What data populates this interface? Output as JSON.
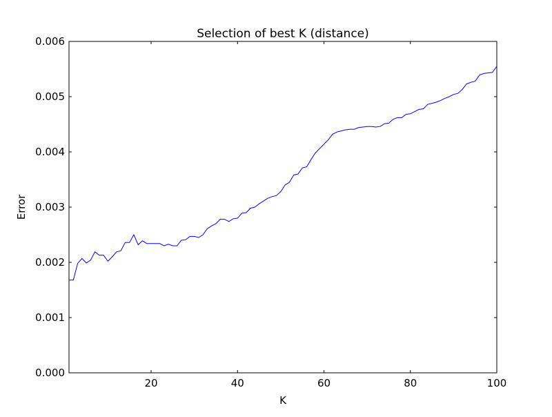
{
  "chart_data": {
    "type": "line",
    "title": "Selection of best K (distance)",
    "xlabel": "K",
    "ylabel": "Error",
    "xlim": [
      1,
      100
    ],
    "ylim": [
      0,
      0.006
    ],
    "x_ticks": [
      20,
      40,
      60,
      80,
      100
    ],
    "y_ticks": [
      0.0,
      0.001,
      0.002,
      0.003,
      0.004,
      0.005,
      0.006
    ],
    "x_tick_labels": [
      "20",
      "40",
      "60",
      "80",
      "100"
    ],
    "y_tick_labels": [
      "0.000",
      "0.001",
      "0.002",
      "0.003",
      "0.004",
      "0.005",
      "0.006"
    ],
    "grid": false,
    "colors": {
      "line": "#0000ff",
      "axes": "#000000",
      "background": "#ffffff"
    },
    "series": [
      {
        "x_start": 1,
        "x_step": 1,
        "values": [
          0.00168,
          0.00168,
          0.00198,
          0.00207,
          0.00199,
          0.00204,
          0.00219,
          0.00213,
          0.00213,
          0.00202,
          0.0021,
          0.00219,
          0.00221,
          0.00236,
          0.00236,
          0.0025,
          0.00232,
          0.00239,
          0.00234,
          0.00234,
          0.00234,
          0.00234,
          0.0023,
          0.00233,
          0.0023,
          0.0023,
          0.0024,
          0.00241,
          0.00247,
          0.00247,
          0.00245,
          0.0025,
          0.00261,
          0.00266,
          0.0027,
          0.00278,
          0.00278,
          0.00274,
          0.00279,
          0.0028,
          0.00289,
          0.0029,
          0.00298,
          0.003,
          0.00306,
          0.00311,
          0.00316,
          0.00319,
          0.00321,
          0.00328,
          0.0034,
          0.00345,
          0.00358,
          0.0036,
          0.00371,
          0.00373,
          0.00386,
          0.00398,
          0.00406,
          0.00414,
          0.00422,
          0.00432,
          0.00436,
          0.00438,
          0.0044,
          0.00441,
          0.00441,
          0.00444,
          0.00445,
          0.00446,
          0.00446,
          0.00445,
          0.00446,
          0.00451,
          0.00452,
          0.00459,
          0.00462,
          0.00462,
          0.00468,
          0.00469,
          0.00473,
          0.00477,
          0.00478,
          0.00486,
          0.00488,
          0.0049,
          0.00493,
          0.00497,
          0.005,
          0.00504,
          0.00506,
          0.00513,
          0.00523,
          0.00526,
          0.00528,
          0.00539,
          0.00542,
          0.00543,
          0.00544,
          0.00555
        ]
      }
    ]
  }
}
